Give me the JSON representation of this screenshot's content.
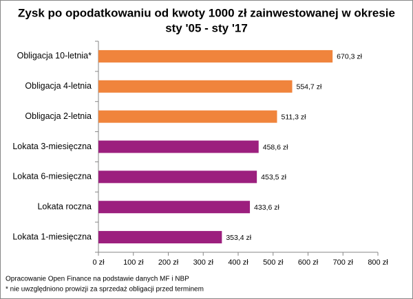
{
  "chart_data": {
    "type": "bar",
    "orientation": "horizontal",
    "title": [
      "Zysk po opodatkowaniu od kwoty 1000 zł zainwestowanej w okresie",
      "sty '05 - sty '17"
    ],
    "categories": [
      "Obligacja 10-letnia*",
      "Obligacja 4-letnia",
      "Obligacja 2-letnia",
      "Lokata 3-miesięczna",
      "Lokata 6-miesięczna",
      "Lokata roczna",
      "Lokata 1-miesięczna"
    ],
    "values": [
      670.3,
      554.7,
      511.3,
      458.6,
      453.5,
      433.6,
      353.4
    ],
    "value_labels": [
      "670,3 zł",
      "554,7 zł",
      "511,3 zł",
      "458,6 zł",
      "453,5 zł",
      "433,6 zł",
      "353,4 zł"
    ],
    "colors": [
      "#f0843c",
      "#f0843c",
      "#f0843c",
      "#9c1f7e",
      "#9c1f7e",
      "#9c1f7e",
      "#9c1f7e"
    ],
    "xlim": [
      0,
      800
    ],
    "xticks": [
      {
        "value": 0,
        "label": "0 zł"
      },
      {
        "value": 100,
        "label": "100 zł"
      },
      {
        "value": 200,
        "label": "200 zł"
      },
      {
        "value": 300,
        "label": "300 zł"
      },
      {
        "value": 400,
        "label": "400 zł"
      },
      {
        "value": 500,
        "label": "500 zł"
      },
      {
        "value": 600,
        "label": "600 zł"
      },
      {
        "value": 700,
        "label": "700 zł"
      },
      {
        "value": 800,
        "label": "800 zł"
      }
    ],
    "notes": [
      "Opracowanie Open Finance na podstawie danych MF i NBP",
      "* nie uwzględniono prowizji za sprzedaż obligacji przed terminem"
    ]
  }
}
